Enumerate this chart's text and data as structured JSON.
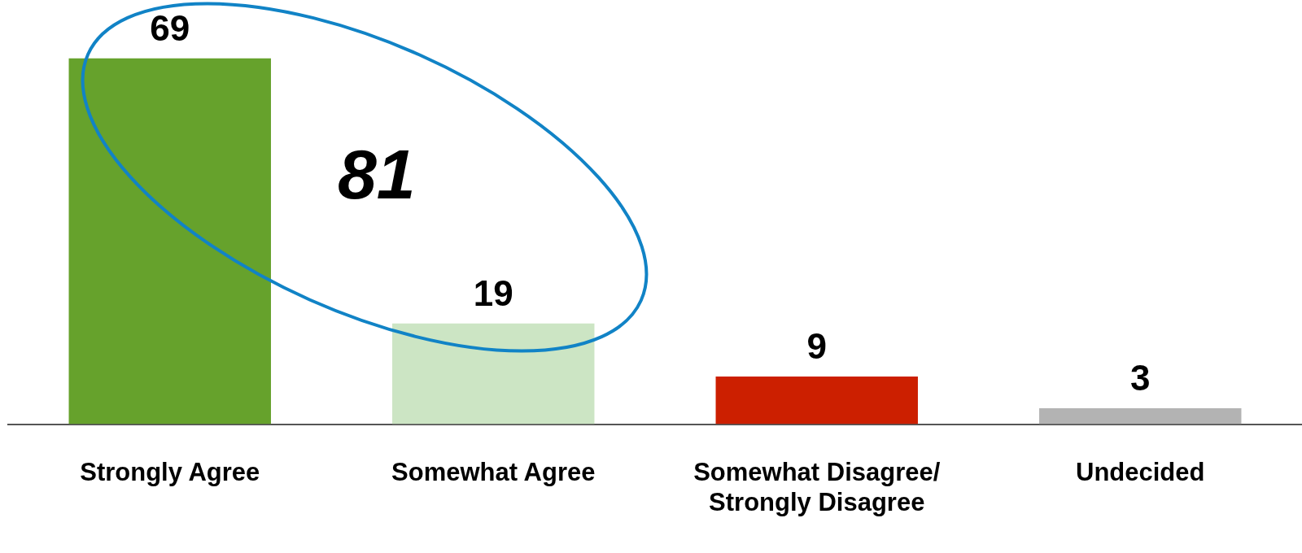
{
  "chart_data": {
    "type": "bar",
    "categories": [
      "Strongly Agree",
      "Somewhat Agree",
      "Somewhat Disagree/ Strongly Disagree",
      "Undecided"
    ],
    "values": [
      69,
      19,
      9,
      3
    ],
    "colors": [
      "#66a22c",
      "#cce5c4",
      "#cc1f00",
      "#b3b3b3"
    ],
    "data_labels": true,
    "annotations": [
      "81"
    ]
  }
}
